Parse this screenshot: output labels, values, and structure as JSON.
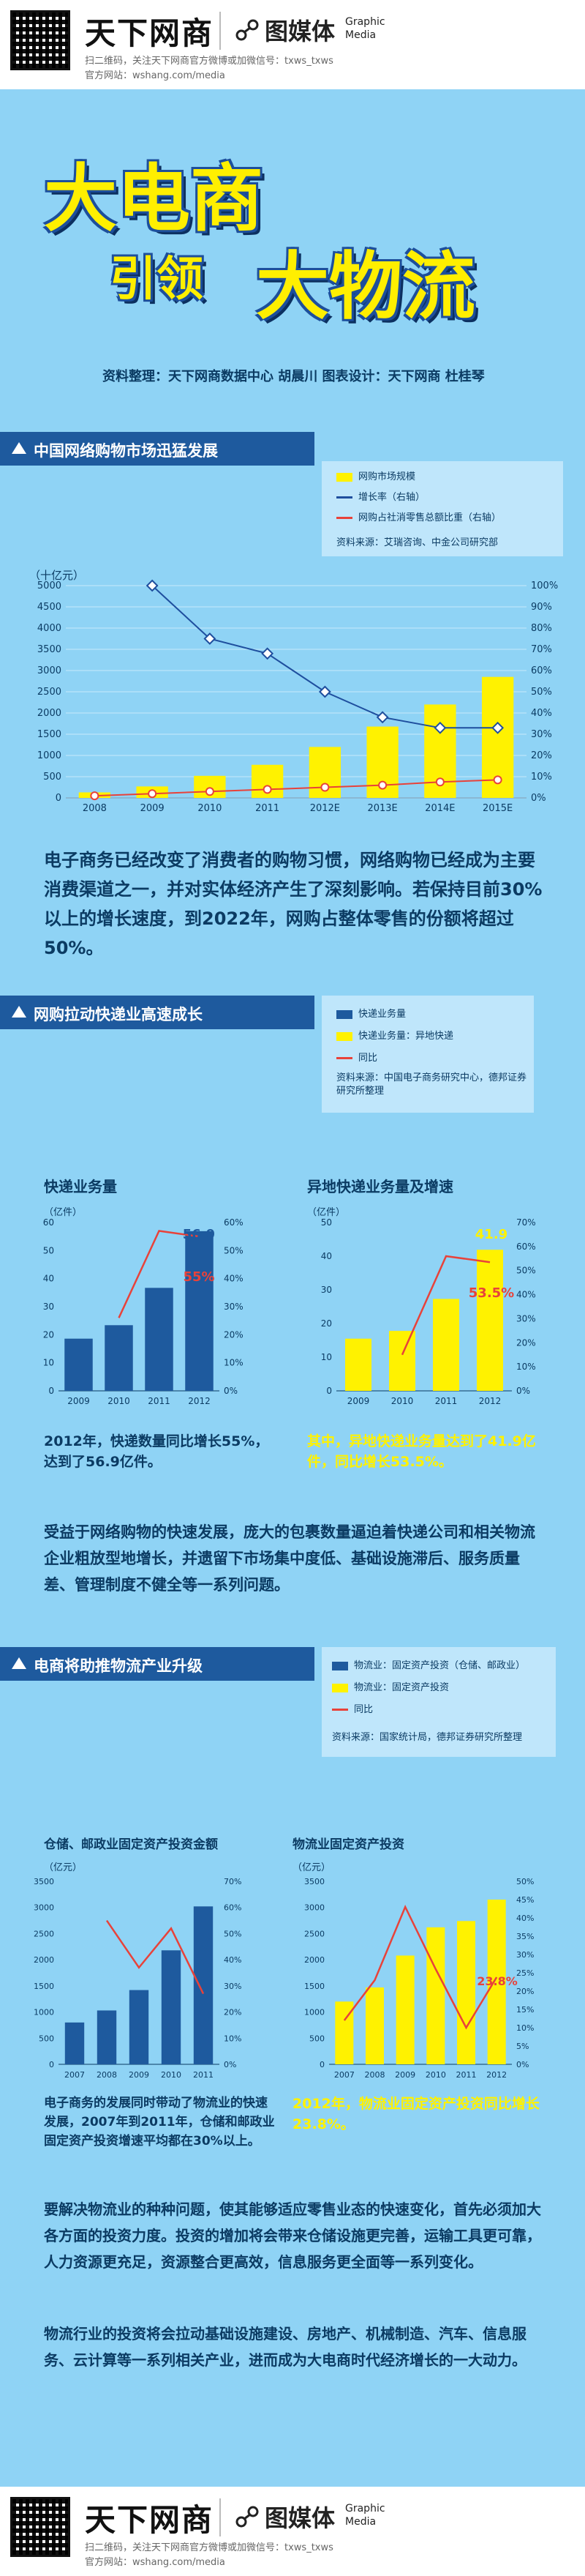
{
  "header": {
    "brand": "天下网商",
    "scan_text": "扫二维码，关注天下网商官方微博或加微信号：txws_txws",
    "website": "官方网站：wshang.com/media",
    "media_cn": "图媒体",
    "media_en_1": "Graphic",
    "media_en_2": "Media"
  },
  "title": {
    "line1": "大电商",
    "line2a": "引领",
    "line2b": "大物流",
    "credit": "资料整理：天下网商数据中心 胡晨川    图表设计：天下网商  杜桂琴"
  },
  "section1": {
    "heading": "中国网络购物市场迅猛发展",
    "legend": [
      "网购市场规模",
      "增长率（右轴）",
      "网购占社消零售总额比重（右轴）"
    ],
    "source": "资料来源：艾瑞咨询、中金公司研究部",
    "unit": "（十亿元）",
    "paragraph": "电子商务已经改变了消费者的购物习惯，网络购物已经成为主要消费渠道之一，并对实体经济产生了深刻影响。若保持目前30%以上的增长速度，到2022年，网购占整体零售的份额将超过50%。"
  },
  "section2": {
    "heading": "网购拉动快递业高速成长",
    "legend": [
      "快递业务量",
      "快递业务量：异地快递",
      "同比"
    ],
    "source": "资料来源：中国电子商务研究中心，德邦证券研究所整理",
    "chart_left_title": "快递业务量",
    "chart_right_title": "异地快递业务量及增速",
    "unit": "（亿件）",
    "caption_left": "2012年，快递数量同比增长55%，达到了56.9亿件。",
    "caption_right": "其中，异地快递业务量达到了41.9亿件，同比增长53.5%。",
    "paragraph": "受益于网络购物的快速发展，庞大的包裹数量逼迫着快递公司和相关物流企业粗放型地增长，并遗留下市场集中度低、基础设施滞后、服务质量差、管理制度不健全等一系列问题。"
  },
  "section3": {
    "heading": "电商将助推物流产业升级",
    "legend": [
      "物流业：固定资产投资（仓储、邮政业）",
      "物流业：固定资产投资",
      "同比"
    ],
    "source": "资料来源：国家统计局，德邦证券研究所整理",
    "chart_left_title": "仓储、邮政业固定资产投资金额",
    "chart_right_title": "物流业固定资产投资",
    "unit": "（亿元）",
    "caption_left": "电子商务的发展同时带动了物流业的快速发展，2007年到2011年，仓储和邮政业固定资产投资增速平均都在30%以上。",
    "caption_right": "2012年，物流业固定资产投资同比增长23.8%。",
    "paragraph1": "要解决物流业的种种问题，使其能够适应零售业态的快速变化，首先必须加大各方面的投资力度。投资的增加将会带来仓储设施更完善，运输工具更可靠，人力资源更充足，资源整合更高效，信息服务更全面等一系列变化。",
    "paragraph2": "物流行业的投资将会拉动基础设施建设、房地产、机械制造、汽车、信息服务、云计算等一系列相关产业，进而成为大电商时代经济增长的一大动力。"
  },
  "colors": {
    "bg": "#8fd3f5",
    "navy": "#1e5a9e",
    "yellow": "#fff200",
    "red": "#e8423a",
    "blue_line": "#1e4e9e"
  },
  "chart_data": [
    {
      "type": "bar",
      "categories": [
        "2008",
        "2009",
        "2010",
        "2011",
        "2012E",
        "2013E",
        "2014E",
        "2015E"
      ],
      "series": [
        {
          "name": "网购市场规模",
          "values": [
            130,
            270,
            520,
            780,
            1200,
            1680,
            2200,
            2850
          ]
        },
        {
          "name": "增长率（右轴）",
          "values": [
            null,
            100,
            75,
            68,
            50,
            38,
            33,
            33
          ]
        },
        {
          "name": "网购占社消零售总额比重（右轴）",
          "values": [
            1,
            2,
            3,
            4,
            5,
            6,
            7.5,
            8.5
          ]
        }
      ],
      "ylim": [
        0,
        5000
      ],
      "y2lim": [
        0,
        100
      ],
      "yticks": [
        "0",
        "500",
        "1000",
        "1500",
        "2000",
        "2500",
        "3000",
        "3500",
        "4000",
        "4500",
        "5000"
      ],
      "y2ticks": [
        "0%",
        "10%",
        "20%",
        "30%",
        "40%",
        "50%",
        "60%",
        "70%",
        "80%",
        "90%",
        "100%"
      ]
    },
    {
      "type": "bar",
      "categories": [
        "2009",
        "2010",
        "2011",
        "2012"
      ],
      "series": [
        {
          "name": "快递业务量",
          "values": [
            18.6,
            23.4,
            36.7,
            56.9
          ]
        },
        {
          "name": "同比",
          "values": [
            null,
            26,
            57,
            55
          ]
        }
      ],
      "ylim": [
        0,
        60
      ],
      "y2lim": [
        0,
        60
      ],
      "yticks": [
        "0",
        "10",
        "20",
        "30",
        "40",
        "50",
        "60"
      ],
      "y2ticks": [
        "0%",
        "10%",
        "20%",
        "30%",
        "40%",
        "50%",
        "60%"
      ],
      "labels": [
        "56.9",
        "55%"
      ]
    },
    {
      "type": "bar",
      "categories": [
        "2009",
        "2010",
        "2011",
        "2012"
      ],
      "series": [
        {
          "name": "快递业务量：异地快递",
          "values": [
            15.5,
            17.8,
            27.3,
            41.9
          ]
        },
        {
          "name": "同比",
          "values": [
            null,
            15,
            56,
            53.5
          ]
        }
      ],
      "ylim": [
        0,
        50
      ],
      "y2lim": [
        0,
        70
      ],
      "yticks": [
        "0",
        "10",
        "20",
        "30",
        "40",
        "50"
      ],
      "y2ticks": [
        "0%",
        "10%",
        "20%",
        "30%",
        "40%",
        "50%",
        "60%",
        "70%"
      ],
      "labels": [
        "41.9",
        "53.5%"
      ]
    },
    {
      "type": "bar",
      "categories": [
        "2007",
        "2008",
        "2009",
        "2010",
        "2011"
      ],
      "series": [
        {
          "name": "物流业：固定资产投资（仓储、邮政业）",
          "values": [
            800,
            1030,
            1420,
            2180,
            3020
          ]
        },
        {
          "name": "同比",
          "values": [
            null,
            55,
            37,
            52,
            27
          ]
        }
      ],
      "ylim": [
        0,
        3500
      ],
      "y2lim": [
        0,
        70
      ],
      "yticks": [
        "0",
        "500",
        "1000",
        "1500",
        "2000",
        "2500",
        "3000",
        "3500"
      ],
      "y2ticks": [
        "0%",
        "10%",
        "20%",
        "30%",
        "40%",
        "50%",
        "60%",
        "70%"
      ]
    },
    {
      "type": "bar",
      "categories": [
        "2007",
        "2008",
        "2009",
        "2010",
        "2011",
        "2012"
      ],
      "series": [
        {
          "name": "物流业：固定资产投资",
          "values": [
            1200,
            1470,
            2080,
            2620,
            2740,
            3150
          ]
        },
        {
          "name": "同比",
          "values": [
            12,
            23,
            43,
            26,
            10,
            23.8
          ]
        }
      ],
      "ylim": [
        0,
        3500
      ],
      "y2lim": [
        0,
        50
      ],
      "yticks": [
        "0",
        "500",
        "1000",
        "1500",
        "2000",
        "2500",
        "3000",
        "3500"
      ],
      "y2ticks": [
        "0%",
        "5%",
        "10%",
        "15%",
        "20%",
        "25%",
        "30%",
        "35%",
        "40%",
        "45%",
        "50%"
      ],
      "labels": [
        "23.8%"
      ]
    }
  ]
}
